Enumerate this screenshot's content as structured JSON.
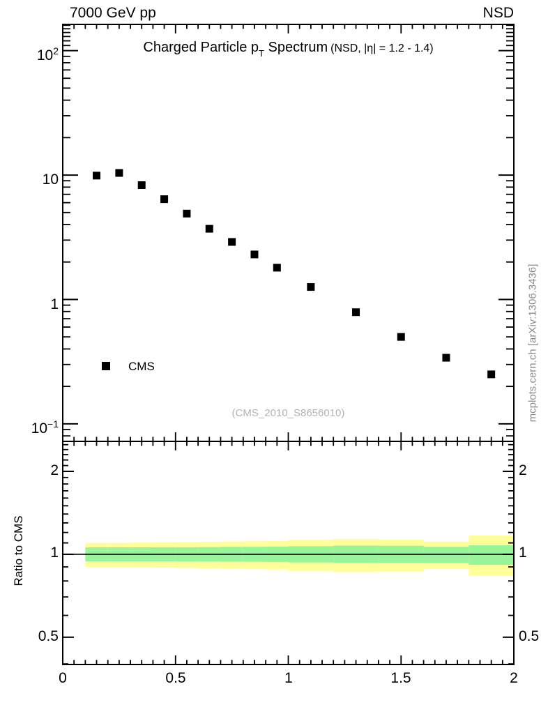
{
  "header": {
    "left_label": "7000 GeV pp",
    "right_label": "NSD"
  },
  "title": {
    "main": "Charged Particle p",
    "sub": "T",
    "tail": " Spectrum",
    "condition": "(NSD, |η| = 1.2 - 1.4)"
  },
  "watermark": {
    "text": "(CMS_2010_S8656010)",
    "color": "#b3b3b3"
  },
  "side_note": {
    "text": "mcplots.cern.ch [arXiv:1306.3436]",
    "color": "#8c8c8c"
  },
  "legend": {
    "items": [
      {
        "label": "CMS",
        "marker": "filled-square",
        "color": "#000000"
      }
    ]
  },
  "axis_labels": {
    "top_y_ticks": [
      {
        "mant": "10",
        "exp": "2"
      },
      {
        "mant": "10",
        "exp": ""
      },
      {
        "mant": "1",
        "exp": ""
      },
      {
        "mant": "10",
        "exp": "−1"
      }
    ],
    "x_ticks": [
      "0",
      "0.5",
      "1",
      "1.5",
      "2"
    ],
    "ratio_y_ticks": [
      "2",
      "1",
      "0.5"
    ],
    "ratio_ylabel": "Ratio to CMS"
  },
  "colors": {
    "marker": "#000000",
    "frame": "#000000",
    "band_outer": "#ffff99",
    "band_inner": "#99f599"
  },
  "chart_data": [
    {
      "type": "scatter",
      "panel": "top",
      "title": "Charged Particle pT Spectrum (NSD, |η| = 1.2 - 1.4)",
      "series": [
        {
          "name": "CMS",
          "marker": "filled-square",
          "color": "#000000",
          "x": [
            0.15,
            0.25,
            0.35,
            0.45,
            0.55,
            0.65,
            0.75,
            0.85,
            0.95,
            1.1,
            1.3,
            1.5,
            1.7,
            1.9
          ],
          "y": [
            9.9,
            10.4,
            8.3,
            6.4,
            4.9,
            3.7,
            2.9,
            2.3,
            1.8,
            1.26,
            0.79,
            0.5,
            0.34,
            0.25
          ]
        }
      ],
      "xlim": [
        0,
        2
      ],
      "ylog": true,
      "ylim": [
        0.0723,
        162.6
      ],
      "yticks_major": [
        0.1,
        1,
        10,
        100
      ],
      "xticks_major": [
        0,
        0.5,
        1,
        1.5,
        2
      ],
      "x_minor_step": 0.05,
      "grid": false,
      "legend_position": "lower-left"
    },
    {
      "type": "band",
      "panel": "bottom",
      "ylabel": "Ratio to CMS",
      "xlim": [
        0,
        2
      ],
      "ylog": true,
      "ylim": [
        0.398,
        2.57
      ],
      "yticks_major": [
        0.5,
        1,
        2
      ],
      "yticks_minor": [
        0.4,
        0.6,
        0.7,
        0.8,
        0.9,
        1.1,
        1.2,
        1.3,
        1.4,
        1.5,
        1.6,
        1.7,
        1.8,
        1.9,
        2.1,
        2.2,
        2.3,
        2.4,
        2.5
      ],
      "reference_line_y": 1,
      "bin_edges": [
        0.1,
        0.2,
        0.3,
        0.4,
        0.5,
        0.6,
        0.7,
        0.8,
        0.9,
        1.0,
        1.2,
        1.4,
        1.6,
        1.8,
        2.0
      ],
      "outer_band": {
        "color": "#ffff99",
        "hi": [
          1.1,
          1.1,
          1.103,
          1.105,
          1.108,
          1.11,
          1.113,
          1.115,
          1.118,
          1.128,
          1.138,
          1.132,
          1.112,
          1.17
        ],
        "lo": [
          0.9,
          0.9,
          0.898,
          0.896,
          0.893,
          0.89,
          0.887,
          0.884,
          0.881,
          0.871,
          0.862,
          0.868,
          0.885,
          0.835
        ]
      },
      "inner_band": {
        "color": "#99f599",
        "hi": [
          1.06,
          1.06,
          1.06,
          1.061,
          1.061,
          1.062,
          1.064,
          1.065,
          1.066,
          1.07,
          1.075,
          1.074,
          1.064,
          1.079
        ],
        "lo": [
          0.943,
          0.943,
          0.943,
          0.943,
          0.942,
          0.942,
          0.94,
          0.939,
          0.938,
          0.934,
          0.93,
          0.932,
          0.929,
          0.916
        ]
      }
    }
  ]
}
